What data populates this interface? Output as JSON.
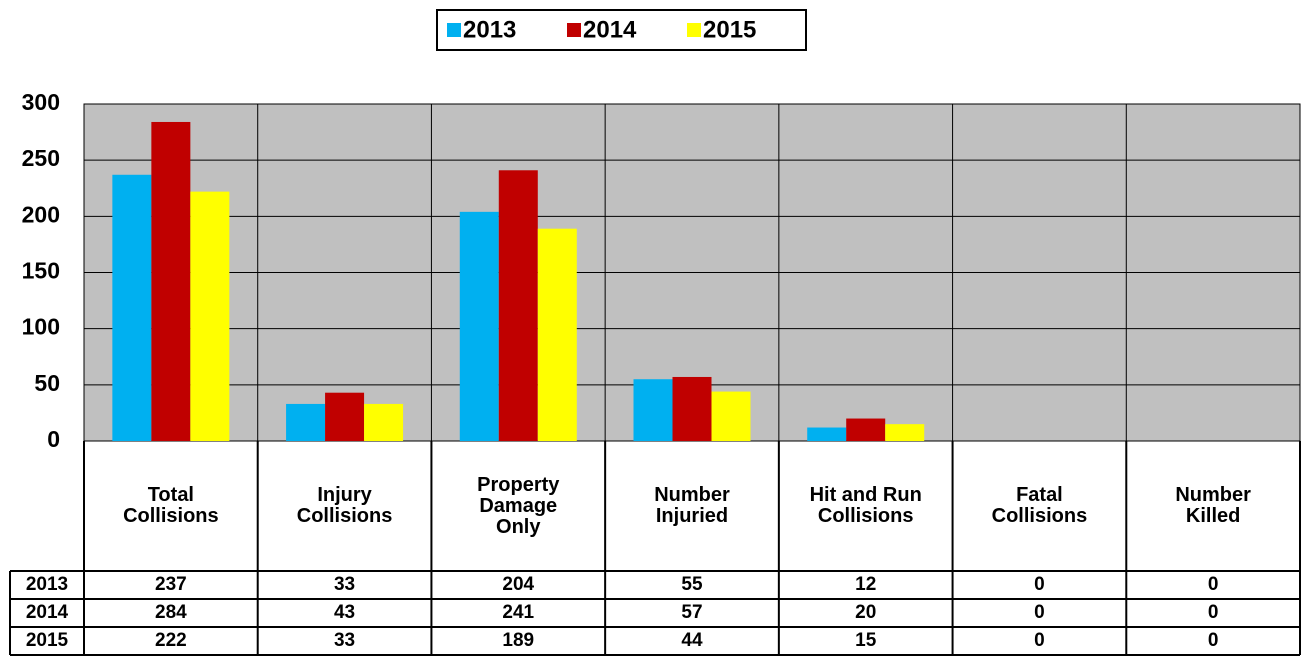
{
  "chart_data": {
    "type": "bar",
    "categories": [
      "Total\nCollisions",
      "Injury\nCollisions",
      "Property\nDamage\nOnly",
      "Number\nInjuried",
      "Hit and Run\nCollisions",
      "Fatal\nCollisions",
      "Number\nKilled"
    ],
    "series": [
      {
        "name": "2013",
        "color": "#00b0f0",
        "values": [
          237,
          33,
          204,
          55,
          12,
          0,
          0
        ]
      },
      {
        "name": "2014",
        "color": "#c00000",
        "values": [
          284,
          43,
          241,
          57,
          20,
          0,
          0
        ]
      },
      {
        "name": "2015",
        "color": "#ffff00",
        "values": [
          222,
          33,
          189,
          44,
          15,
          0,
          0
        ]
      }
    ],
    "ylim": [
      0,
      300
    ],
    "yticks": [
      0,
      50,
      100,
      150,
      200,
      250,
      300
    ],
    "grid": true,
    "legend": "top",
    "plot_background": "#c0c0c0"
  }
}
